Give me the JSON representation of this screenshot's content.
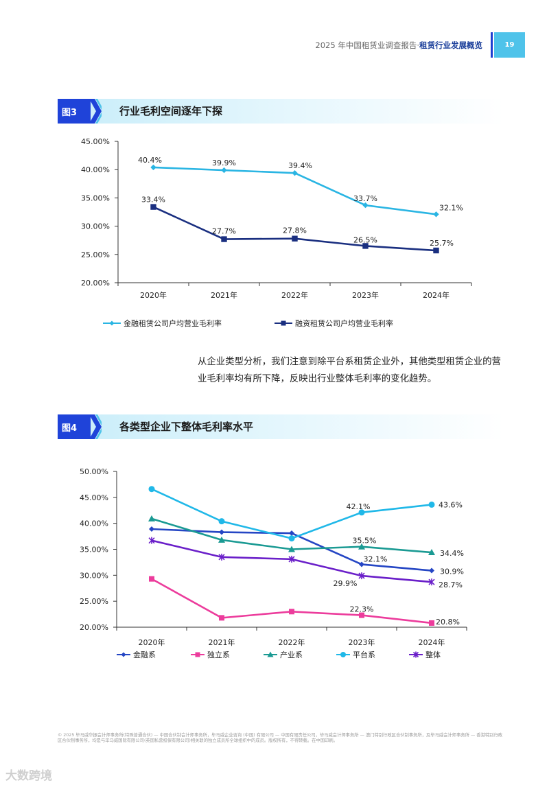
{
  "header": {
    "report_title": "2025 年中国租赁业调查报告·",
    "section_title": "租赁行业发展概览",
    "page_number": "19"
  },
  "figure3": {
    "tag": "图3",
    "title": "行业毛利空间逐年下探"
  },
  "figure4": {
    "tag": "图4",
    "title": "各类型企业下整体毛利率水平"
  },
  "paragraph": "从企业类型分析，我们注意到除平台系租赁企业外，其他类型租赁企业的营业毛利率均有所下降，反映出行业整体毛利率的变化趋势。",
  "footer": "© 2025 毕马威华振会计师事务所(特殊普通合伙) — 中国合伙制会计师事务所，毕马威企业咨询 (中国) 有限公司 — 中国有限责任公司，毕马威会计师事务所 — 澳门特别行政区合伙制事务所，及毕马威会计师事务所 — 香港特别行政区合伙制事务所，均是与毕马威国际有限公司(英国私营担保有限公司)相关联的独立成员所全球组织中的成员。版权所有，不得转载。在中国印刷。",
  "watermark": "大数跨境",
  "chart_data": [
    {
      "type": "line",
      "categories": [
        "2020年",
        "2021年",
        "2022年",
        "2023年",
        "2024年"
      ],
      "ylim": [
        0.2,
        0.45
      ],
      "yticks": [
        0.2,
        0.25,
        0.3,
        0.35,
        0.4,
        0.45
      ],
      "ytick_labels": [
        "20.00%",
        "25.00%",
        "30.00%",
        "35.00%",
        "40.00%",
        "45.00%"
      ],
      "legend_position": "bottom",
      "series": [
        {
          "name": "金融租赁公司户均营业毛利率",
          "color": "#2ab5e3",
          "marker": "diamond",
          "values": [
            0.404,
            0.399,
            0.394,
            0.337,
            0.321
          ],
          "labels": [
            "40.4%",
            "39.9%",
            "39.4%",
            "33.7%",
            "32.1%"
          ]
        },
        {
          "name": "融资租赁公司户均营业毛利率",
          "color": "#1a2f80",
          "marker": "square",
          "values": [
            0.334,
            0.277,
            0.278,
            0.265,
            0.257
          ],
          "labels": [
            "33.4%",
            "27.7%",
            "27.8%",
            "26.5%",
            "25.7%"
          ]
        }
      ]
    },
    {
      "type": "line",
      "categories": [
        "2020年",
        "2021年",
        "2022年",
        "2023年",
        "2024年"
      ],
      "ylim": [
        0.2,
        0.5
      ],
      "yticks": [
        0.2,
        0.25,
        0.3,
        0.35,
        0.4,
        0.45,
        0.5
      ],
      "ytick_labels": [
        "20.00%",
        "25.00%",
        "30.00%",
        "35.00%",
        "40.00%",
        "45.00%",
        "50.00%"
      ],
      "legend_position": "bottom",
      "series": [
        {
          "name": "金融系",
          "color": "#2546c4",
          "marker": "diamond",
          "values": [
            0.389,
            0.383,
            0.381,
            0.321,
            0.309
          ],
          "labels": [
            "",
            "",
            "",
            "32.1%",
            "30.9%"
          ]
        },
        {
          "name": "独立系",
          "color": "#ec3c9c",
          "marker": "square",
          "values": [
            0.293,
            0.218,
            0.23,
            0.223,
            0.208
          ],
          "labels": [
            "",
            "",
            "",
            "22.3%",
            "20.8%"
          ]
        },
        {
          "name": "产业系",
          "color": "#1a9a93",
          "marker": "triangle",
          "values": [
            0.409,
            0.368,
            0.35,
            0.355,
            0.344
          ],
          "labels": [
            "",
            "",
            "",
            "35.5%",
            "34.4%"
          ]
        },
        {
          "name": "平台系",
          "color": "#20b8e8",
          "marker": "circle",
          "values": [
            0.466,
            0.404,
            0.371,
            0.421,
            0.436
          ],
          "labels": [
            "",
            "",
            "",
            "42.1%",
            "43.6%"
          ]
        },
        {
          "name": "整体",
          "color": "#6a1fc9",
          "marker": "star",
          "values": [
            0.367,
            0.335,
            0.331,
            0.299,
            0.287
          ],
          "labels": [
            "",
            "",
            "",
            "29.9%",
            "28.7%"
          ]
        }
      ]
    }
  ]
}
